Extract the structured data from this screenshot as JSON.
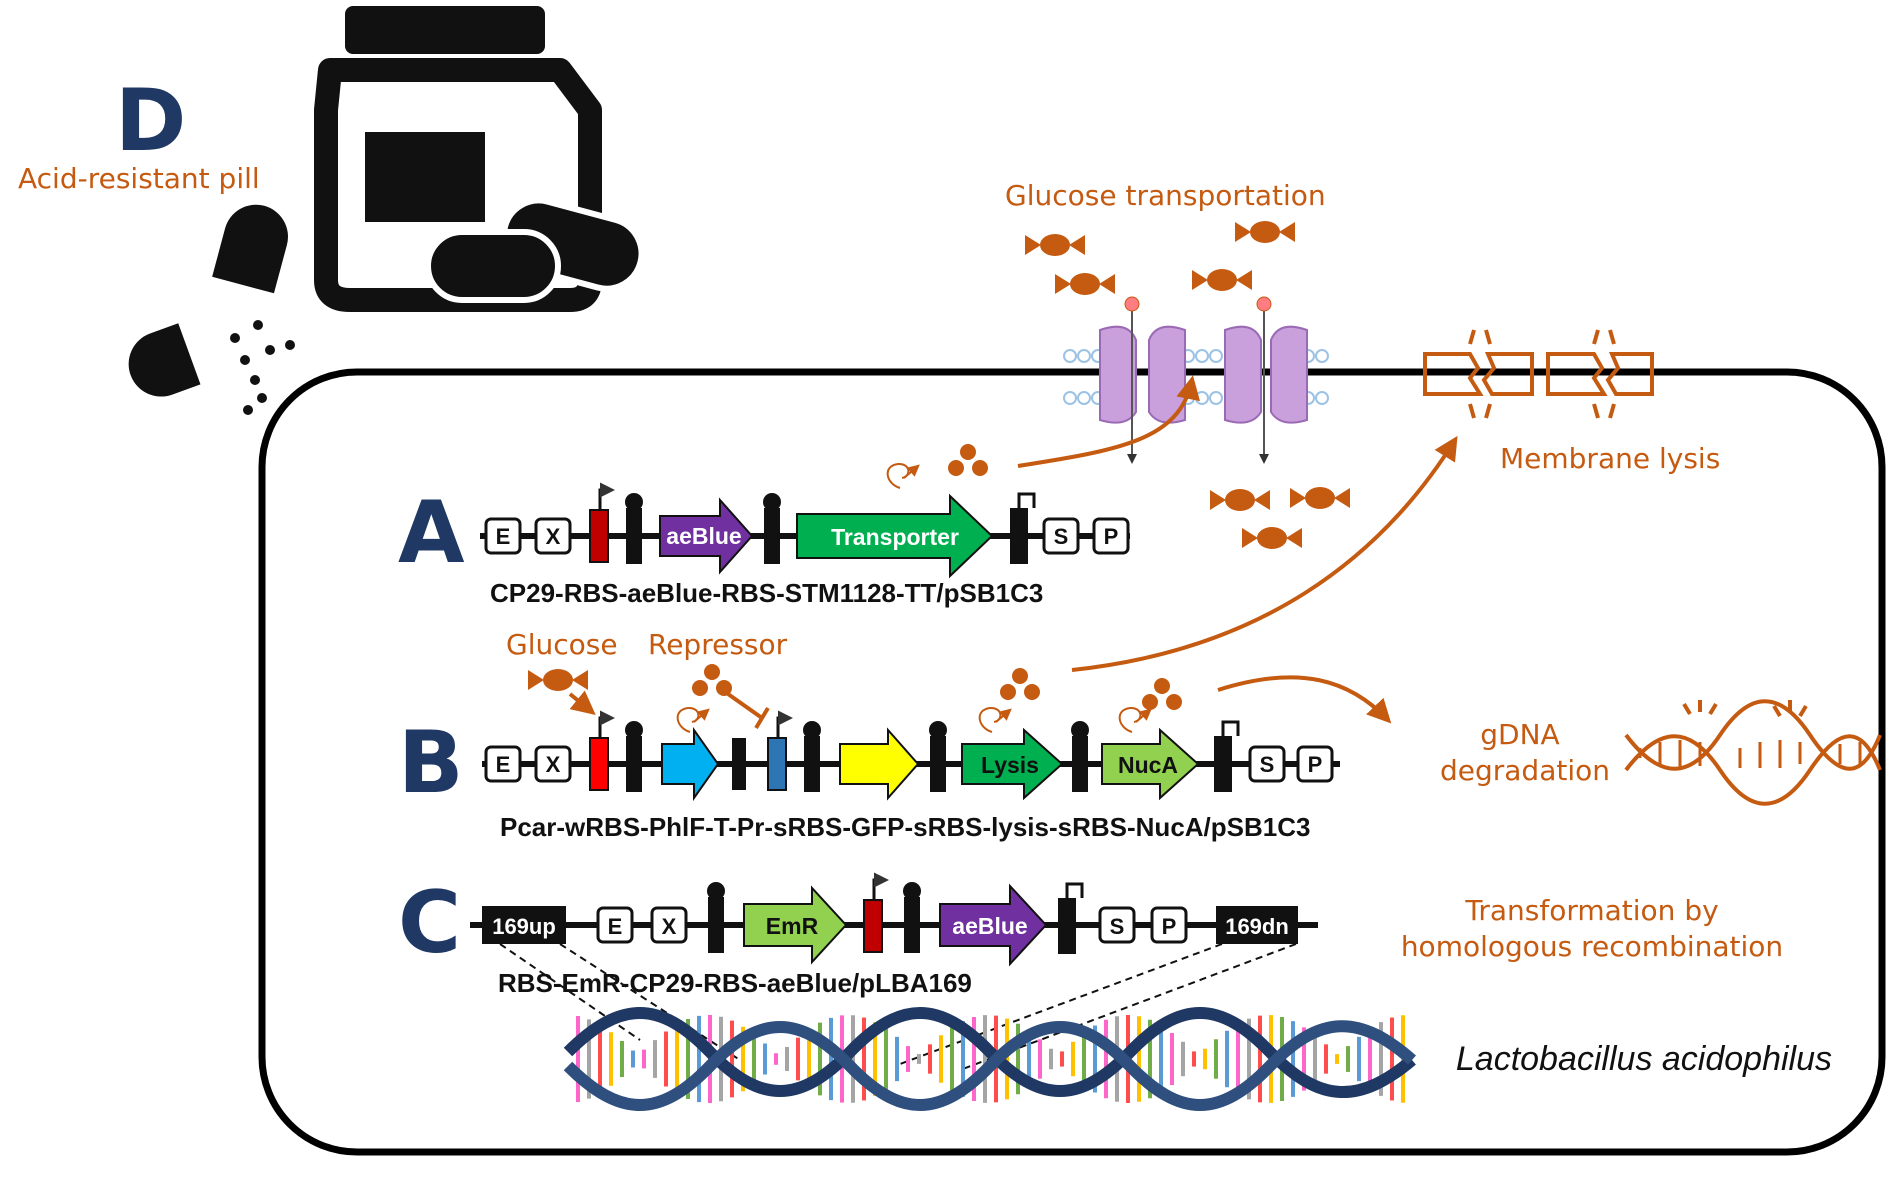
{
  "panels": {
    "d": {
      "letter": "D",
      "label": "Acid-resistant pill"
    },
    "a": {
      "letter": "A",
      "construct": "CP29-RBS-aeBlue-RBS-STM1128-TT/pSB1C3",
      "gene1": "aeBlue",
      "gene2": "Transporter"
    },
    "b": {
      "letter": "B",
      "construct": "Pcar-wRBS-PhlF-T-Pr-sRBS-GFP-sRBS-lysis-sRBS-NucA/pSB1C3",
      "gene1": "Lysis",
      "gene2": "NucA"
    },
    "c": {
      "letter": "C",
      "construct": "RBS-EmR-CP29-RBS-aeBlue/pLBA169",
      "up": "169up",
      "dn": "169dn",
      "gene1": "EmR",
      "gene2": "aeBlue"
    }
  },
  "sites": {
    "e": "E",
    "x": "X",
    "s": "S",
    "p": "P"
  },
  "labels": {
    "glucose_transport": "Glucose transportation",
    "membrane_lysis": "Membrane lysis",
    "glucose": "Glucose",
    "repressor": "Repressor",
    "gdna_line1": "gDNA",
    "gdna_line2": "degradation",
    "transform_line1": "Transformation by",
    "transform_line2": "homologous recombination",
    "organism": "Lactobacillus acidophilus"
  },
  "colors": {
    "accent": "#c55a11",
    "letter": "#1f3864",
    "aeblue": "#7030a0",
    "transporter": "#00b050",
    "promoter_red": "#c00000",
    "phlf": "#00b0f0",
    "promoter_blue": "#2e75b6",
    "gfp": "#ffff00",
    "lysis": "#00b050",
    "nuca": "#92d050",
    "emr": "#92d050"
  }
}
